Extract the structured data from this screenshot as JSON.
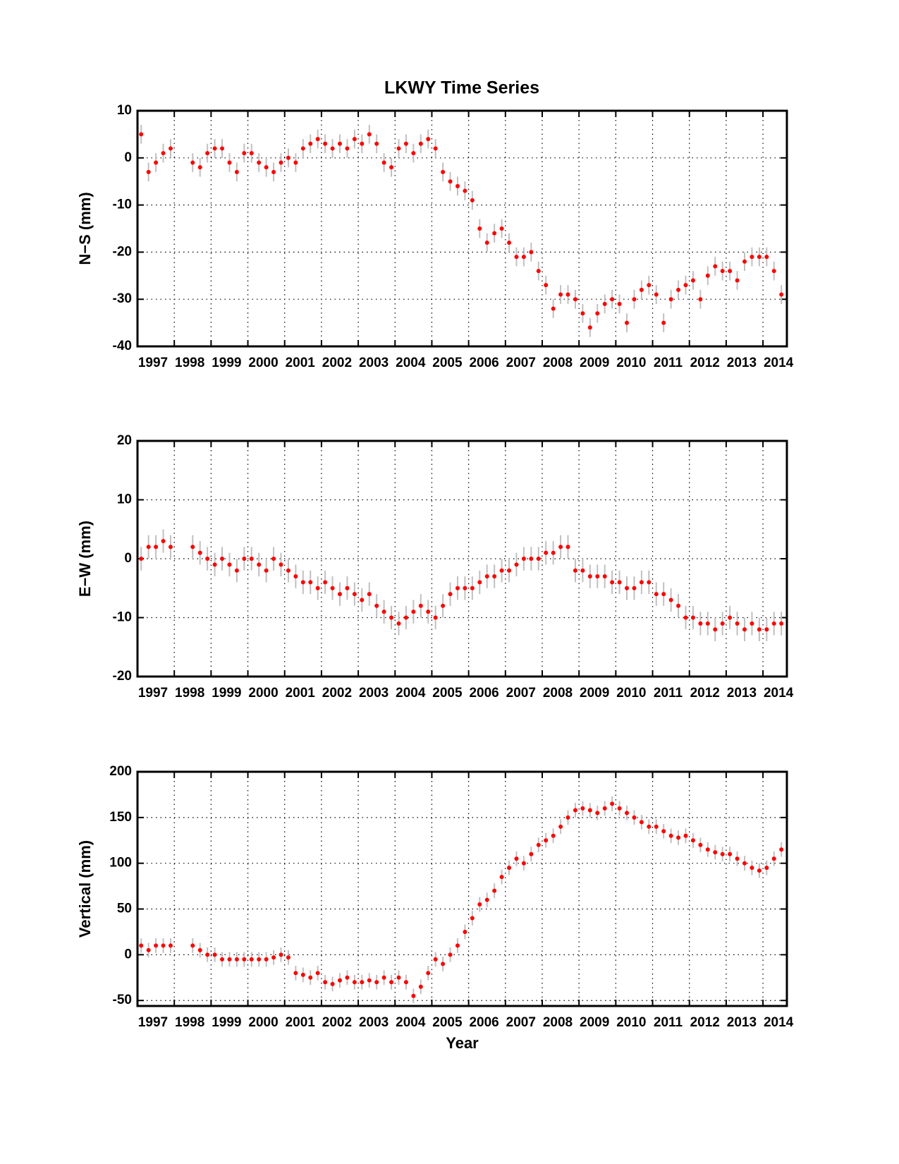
{
  "chart_data": [
    {
      "type": "scatter",
      "title": "LKWY Time Series",
      "y_label": "N−S (mm)",
      "x": [
        1997.1,
        1997.3,
        1997.5,
        1997.7,
        1997.9,
        1998.5,
        1998.7,
        1998.9,
        1999.1,
        1999.3,
        1999.5,
        1999.7,
        1999.9,
        2000.1,
        2000.3,
        2000.5,
        2000.7,
        2000.9,
        2001.1,
        2001.3,
        2001.5,
        2001.7,
        2001.9,
        2002.1,
        2002.3,
        2002.5,
        2002.7,
        2002.9,
        2003.1,
        2003.3,
        2003.5,
        2003.7,
        2003.9,
        2004.1,
        2004.3,
        2004.5,
        2004.7,
        2004.9,
        2005.1,
        2005.3,
        2005.5,
        2005.7,
        2005.9,
        2006.1,
        2006.3,
        2006.5,
        2006.7,
        2006.9,
        2007.1,
        2007.3,
        2007.5,
        2007.7,
        2007.9,
        2008.1,
        2008.3,
        2008.5,
        2008.7,
        2008.9,
        2009.1,
        2009.3,
        2009.5,
        2009.7,
        2009.9,
        2010.1,
        2010.3,
        2010.5,
        2010.7,
        2010.9,
        2011.1,
        2011.3,
        2011.5,
        2011.7,
        2011.9,
        2012.1,
        2012.3,
        2012.5,
        2012.7,
        2012.9,
        2013.1,
        2013.3,
        2013.5,
        2013.7,
        2013.9,
        2014.1,
        2014.3,
        2014.5
      ],
      "values": [
        5,
        -3,
        -1,
        1,
        2,
        -1,
        -2,
        1,
        2,
        2,
        -1,
        -3,
        1,
        1,
        -1,
        -2,
        -3,
        -1,
        0,
        -1,
        2,
        3,
        4,
        3,
        2,
        3,
        2,
        4,
        3,
        5,
        3,
        -1,
        -2,
        2,
        3,
        1,
        3,
        4,
        2,
        -3,
        -5,
        -6,
        -7,
        -9,
        -15,
        -18,
        -16,
        -15,
        -18,
        -21,
        -21,
        -20,
        -24,
        -27,
        -32,
        -29,
        -29,
        -30,
        -33,
        -36,
        -33,
        -31,
        -30,
        -31,
        -35,
        -30,
        -28,
        -27,
        -29,
        -35,
        -30,
        -28,
        -27,
        -26,
        -30,
        -25,
        -23,
        -24,
        -24,
        -26,
        -22,
        -21,
        -21,
        -21,
        -24,
        -29
      ],
      "error": 2,
      "color": "#ff0000",
      "error_color": "#c0c0c0",
      "xlim": [
        1997,
        2014.65
      ],
      "xticks": [
        1997,
        1998,
        1999,
        2000,
        2001,
        2002,
        2003,
        2004,
        2005,
        2006,
        2007,
        2008,
        2009,
        2010,
        2011,
        2012,
        2013,
        2014
      ],
      "ylim": [
        -40,
        10
      ],
      "yticks": [
        -40,
        -30,
        -20,
        -10,
        0,
        10
      ],
      "grid": true
    },
    {
      "type": "scatter",
      "y_label": "E−W (mm)",
      "x": [
        1997.1,
        1997.3,
        1997.5,
        1997.7,
        1997.9,
        1998.5,
        1998.7,
        1998.9,
        1999.1,
        1999.3,
        1999.5,
        1999.7,
        1999.9,
        2000.1,
        2000.3,
        2000.5,
        2000.7,
        2000.9,
        2001.1,
        2001.3,
        2001.5,
        2001.7,
        2001.9,
        2002.1,
        2002.3,
        2002.5,
        2002.7,
        2002.9,
        2003.1,
        2003.3,
        2003.5,
        2003.7,
        2003.9,
        2004.1,
        2004.3,
        2004.5,
        2004.7,
        2004.9,
        2005.1,
        2005.3,
        2005.5,
        2005.7,
        2005.9,
        2006.1,
        2006.3,
        2006.5,
        2006.7,
        2006.9,
        2007.1,
        2007.3,
        2007.5,
        2007.7,
        2007.9,
        2008.1,
        2008.3,
        2008.5,
        2008.7,
        2008.9,
        2009.1,
        2009.3,
        2009.5,
        2009.7,
        2009.9,
        2010.1,
        2010.3,
        2010.5,
        2010.7,
        2010.9,
        2011.1,
        2011.3,
        2011.5,
        2011.7,
        2011.9,
        2012.1,
        2012.3,
        2012.5,
        2012.7,
        2012.9,
        2013.1,
        2013.3,
        2013.5,
        2013.7,
        2013.9,
        2014.1,
        2014.3,
        2014.5
      ],
      "values": [
        0,
        2,
        2,
        3,
        2,
        2,
        1,
        0,
        -1,
        0,
        -1,
        -2,
        0,
        0,
        -1,
        -2,
        0,
        -1,
        -2,
        -3,
        -4,
        -4,
        -5,
        -4,
        -5,
        -6,
        -5,
        -6,
        -7,
        -6,
        -8,
        -9,
        -10,
        -11,
        -10,
        -9,
        -8,
        -9,
        -10,
        -8,
        -6,
        -5,
        -5,
        -5,
        -4,
        -3,
        -3,
        -2,
        -2,
        -1,
        0,
        0,
        0,
        1,
        1,
        2,
        2,
        -2,
        -2,
        -3,
        -3,
        -3,
        -4,
        -4,
        -5,
        -5,
        -4,
        -4,
        -6,
        -6,
        -7,
        -8,
        -10,
        -10,
        -11,
        -11,
        -12,
        -11,
        -10,
        -11,
        -12,
        -11,
        -12,
        -12,
        -11,
        -11
      ],
      "error": 2,
      "color": "#ff0000",
      "error_color": "#c0c0c0",
      "xlim": [
        1997,
        2014.65
      ],
      "xticks": [
        1997,
        1998,
        1999,
        2000,
        2001,
        2002,
        2003,
        2004,
        2005,
        2006,
        2007,
        2008,
        2009,
        2010,
        2011,
        2012,
        2013,
        2014
      ],
      "ylim": [
        -20,
        20
      ],
      "yticks": [
        -20,
        -10,
        0,
        10,
        20
      ],
      "grid": true
    },
    {
      "type": "scatter",
      "y_label": "Vertical (mm)",
      "x_label": "Year",
      "x": [
        1997.1,
        1997.3,
        1997.5,
        1997.7,
        1997.9,
        1998.5,
        1998.7,
        1998.9,
        1999.1,
        1999.3,
        1999.5,
        1999.7,
        1999.9,
        2000.1,
        2000.3,
        2000.5,
        2000.7,
        2000.9,
        2001.1,
        2001.3,
        2001.5,
        2001.7,
        2001.9,
        2002.1,
        2002.3,
        2002.5,
        2002.7,
        2002.9,
        2003.1,
        2003.3,
        2003.5,
        2003.7,
        2003.9,
        2004.1,
        2004.3,
        2004.5,
        2004.7,
        2004.9,
        2005.1,
        2005.3,
        2005.5,
        2005.7,
        2005.9,
        2006.1,
        2006.3,
        2006.5,
        2006.7,
        2006.9,
        2007.1,
        2007.3,
        2007.5,
        2007.7,
        2007.9,
        2008.1,
        2008.3,
        2008.5,
        2008.7,
        2008.9,
        2009.1,
        2009.3,
        2009.5,
        2009.7,
        2009.9,
        2010.1,
        2010.3,
        2010.5,
        2010.7,
        2010.9,
        2011.1,
        2011.3,
        2011.5,
        2011.7,
        2011.9,
        2012.1,
        2012.3,
        2012.5,
        2012.7,
        2012.9,
        2013.1,
        2013.3,
        2013.5,
        2013.7,
        2013.9,
        2014.1,
        2014.3,
        2014.5
      ],
      "values": [
        10,
        5,
        10,
        10,
        10,
        10,
        5,
        0,
        0,
        -5,
        -5,
        -5,
        -5,
        -5,
        -5,
        -5,
        -3,
        0,
        -3,
        -20,
        -22,
        -25,
        -20,
        -30,
        -32,
        -28,
        -25,
        -30,
        -30,
        -28,
        -30,
        -25,
        -30,
        -25,
        -30,
        -45,
        -35,
        -20,
        -5,
        -10,
        0,
        10,
        25,
        40,
        55,
        60,
        70,
        85,
        95,
        105,
        100,
        110,
        120,
        125,
        130,
        140,
        150,
        158,
        160,
        158,
        155,
        160,
        165,
        160,
        155,
        150,
        145,
        140,
        140,
        135,
        130,
        128,
        130,
        125,
        120,
        115,
        112,
        110,
        110,
        105,
        100,
        95,
        92,
        95,
        105,
        115
      ],
      "error": 8,
      "color": "#ff0000",
      "error_color": "#c0c0c0",
      "xlim": [
        1997,
        2014.65
      ],
      "xticks": [
        1997,
        1998,
        1999,
        2000,
        2001,
        2002,
        2003,
        2004,
        2005,
        2006,
        2007,
        2008,
        2009,
        2010,
        2011,
        2012,
        2013,
        2014
      ],
      "ylim": [
        -56,
        200
      ],
      "yticks": [
        -50,
        0,
        50,
        100,
        150,
        200
      ],
      "grid": true
    }
  ]
}
